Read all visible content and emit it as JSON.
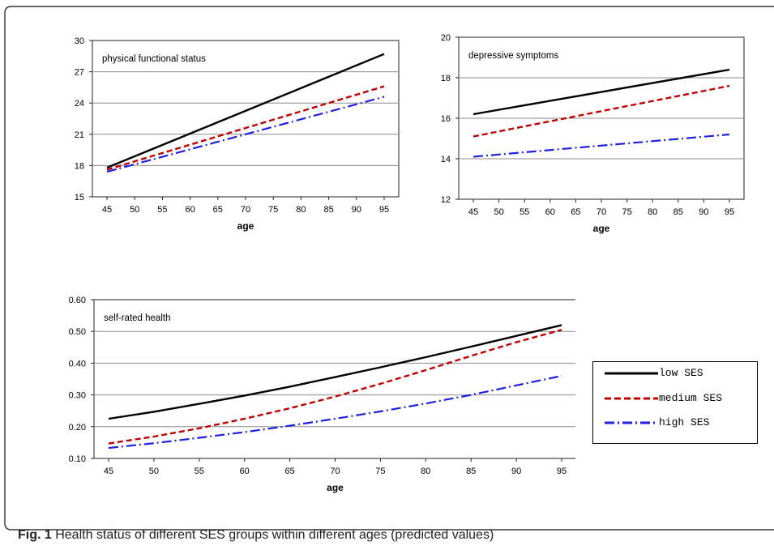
{
  "figure": {
    "caption_label": "Fig. 1",
    "caption_text": " Health status of different SES groups within different ages (predicted values)"
  },
  "legend": {
    "entries": [
      {
        "label": "low SES",
        "color": "#000000",
        "dash": "solid"
      },
      {
        "label": "medium SES",
        "color": "#c00000",
        "dash": "dashed"
      },
      {
        "label": "high SES",
        "color": "#1f1fe0",
        "dash": "dash-dot"
      }
    ]
  },
  "chart_data": [
    {
      "type": "line",
      "title": "physical functional status",
      "xlabel": "age",
      "ylabel": "",
      "x": [
        45,
        95
      ],
      "x_ticks": [
        45,
        50,
        55,
        60,
        65,
        70,
        75,
        80,
        85,
        90,
        95
      ],
      "ylim": [
        15,
        30
      ],
      "y_ticks": [
        15,
        18,
        21,
        24,
        27,
        30
      ],
      "grid": true,
      "series": [
        {
          "name": "low SES",
          "values": [
            17.8,
            28.7
          ]
        },
        {
          "name": "medium SES",
          "values": [
            17.6,
            25.6
          ]
        },
        {
          "name": "high SES",
          "values": [
            17.4,
            24.6
          ]
        }
      ]
    },
    {
      "type": "line",
      "title": "depressive symptoms",
      "xlabel": "age",
      "ylabel": "",
      "x": [
        45,
        95
      ],
      "x_ticks": [
        45,
        50,
        55,
        60,
        65,
        70,
        75,
        80,
        85,
        90,
        95
      ],
      "ylim": [
        12,
        20
      ],
      "y_ticks": [
        12,
        14,
        16,
        18,
        20
      ],
      "grid": true,
      "series": [
        {
          "name": "low SES",
          "values": [
            16.2,
            18.4
          ]
        },
        {
          "name": "medium SES",
          "values": [
            15.1,
            17.6
          ]
        },
        {
          "name": "high SES",
          "values": [
            14.1,
            15.2
          ]
        }
      ]
    },
    {
      "type": "line",
      "title": "self-rated health",
      "xlabel": "age",
      "ylabel": "",
      "x": [
        45,
        50,
        55,
        60,
        65,
        70,
        75,
        80,
        85,
        90,
        95
      ],
      "x_ticks": [
        45,
        50,
        55,
        60,
        65,
        70,
        75,
        80,
        85,
        90,
        95
      ],
      "ylim": [
        0.1,
        0.6
      ],
      "y_ticks": [
        0.1,
        0.2,
        0.3,
        0.4,
        0.5,
        0.6
      ],
      "y_tick_format": "0.00",
      "grid": true,
      "series": [
        {
          "name": "low SES",
          "values": [
            0.225,
            0.247,
            0.272,
            0.298,
            0.326,
            0.356,
            0.387,
            0.419,
            0.452,
            0.486,
            0.52
          ]
        },
        {
          "name": "medium SES",
          "values": [
            0.147,
            0.169,
            0.195,
            0.225,
            0.258,
            0.295,
            0.335,
            0.378,
            0.423,
            0.466,
            0.505
          ]
        },
        {
          "name": "high SES",
          "values": [
            0.133,
            0.148,
            0.165,
            0.183,
            0.203,
            0.225,
            0.248,
            0.273,
            0.3,
            0.33,
            0.36
          ]
        }
      ]
    }
  ]
}
